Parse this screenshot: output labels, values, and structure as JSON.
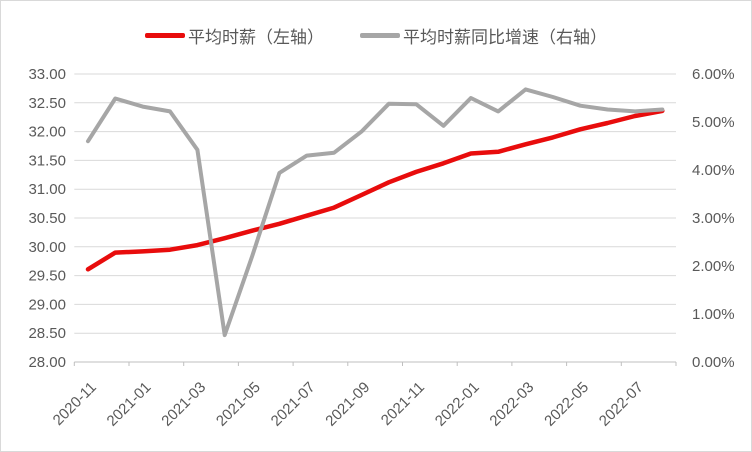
{
  "legend": {
    "items": [
      {
        "label": "平均时薪（左轴）",
        "color": "#e80c0c"
      },
      {
        "label": "平均时薪同比增速（右轴）",
        "color": "#a6a6a6"
      }
    ]
  },
  "chart_data": {
    "type": "line",
    "title": "",
    "categories": [
      "2020-11",
      "2020-12",
      "2021-01",
      "2021-02",
      "2021-03",
      "2021-04",
      "2021-05",
      "2021-06",
      "2021-07",
      "2021-08",
      "2021-09",
      "2021-10",
      "2021-11",
      "2021-12",
      "2022-01",
      "2022-02",
      "2022-03",
      "2022-04",
      "2022-05",
      "2022-06",
      "2022-07",
      "2022-08"
    ],
    "series": [
      {
        "name": "平均时薪（左轴）",
        "axis": "left",
        "color": "#e80c0c",
        "values": [
          29.61,
          29.9,
          29.92,
          29.95,
          30.03,
          30.15,
          30.28,
          30.4,
          30.54,
          30.68,
          30.9,
          31.12,
          31.3,
          31.45,
          31.62,
          31.65,
          31.78,
          31.9,
          32.04,
          32.15,
          32.27,
          32.36
        ]
      },
      {
        "name": "平均时薪同比增速（右轴）",
        "axis": "right",
        "color": "#a6a6a6",
        "values": [
          4.6,
          5.49,
          5.32,
          5.22,
          4.42,
          0.56,
          2.2,
          3.94,
          4.3,
          4.36,
          4.8,
          5.38,
          5.37,
          4.92,
          5.5,
          5.22,
          5.68,
          5.52,
          5.34,
          5.26,
          5.22,
          5.26
        ]
      }
    ],
    "left_axis": {
      "min": 28,
      "max": 33,
      "tick_labels": [
        "33.00",
        "32.50",
        "32.00",
        "31.50",
        "31.00",
        "30.50",
        "30.00",
        "29.50",
        "29.00",
        "28.50",
        "28.00"
      ]
    },
    "right_axis": {
      "min": 0,
      "max": 6,
      "tick_labels": [
        "6.00%",
        "5.00%",
        "4.00%",
        "3.00%",
        "2.00%",
        "1.00%",
        "0.00%"
      ]
    },
    "x_tick_labels": [
      "2020-11",
      "2021-01",
      "2021-03",
      "2021-05",
      "2021-07",
      "2021-09",
      "2021-11",
      "2022-01",
      "2022-03",
      "2022-05",
      "2022-07"
    ],
    "grid": true,
    "legend_position": "top",
    "grid_color": "#d9d9d9",
    "axis_line_color": "#bfbfbf",
    "label_color": "#595959"
  }
}
